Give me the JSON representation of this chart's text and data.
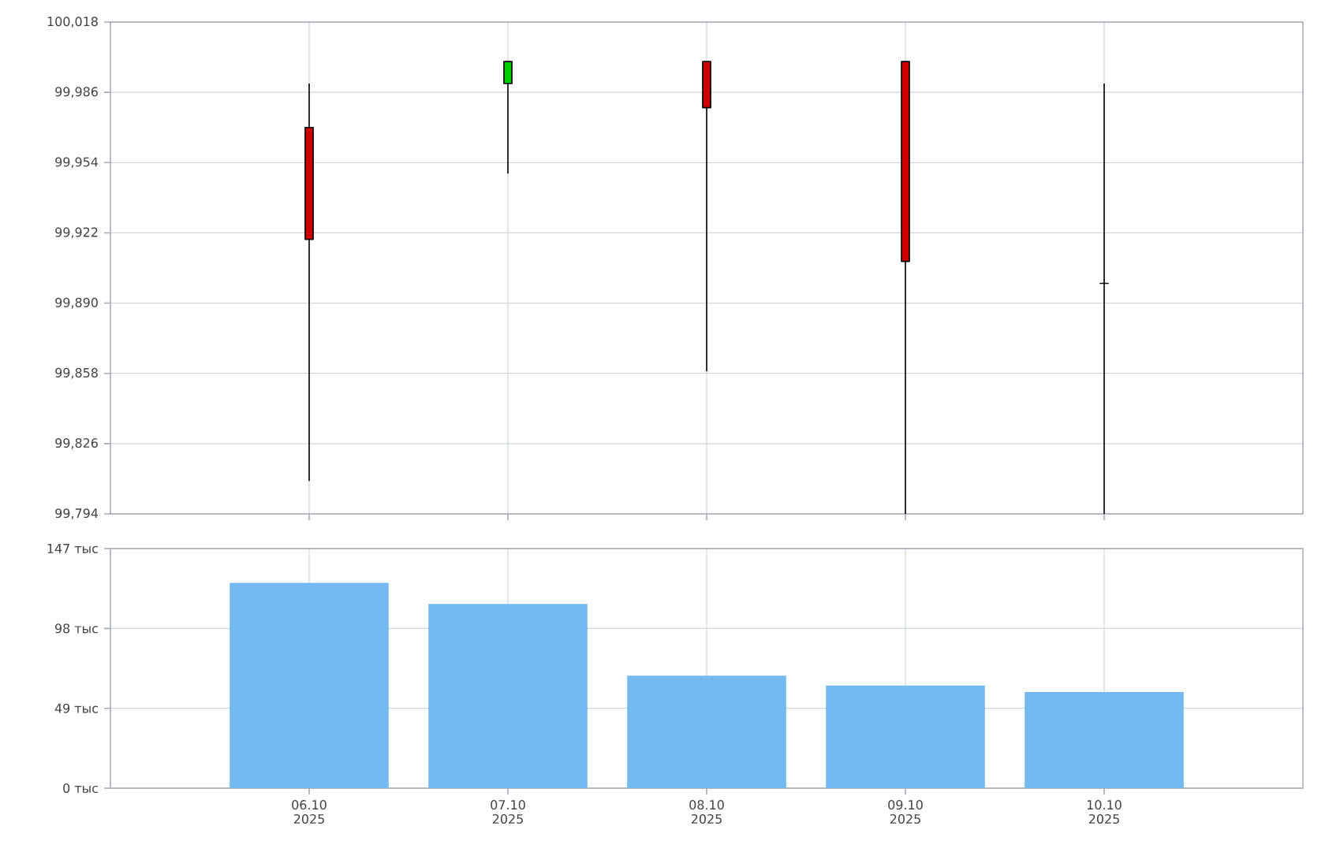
{
  "chart_data": [
    {
      "type": "candlestick",
      "categories": [
        null,
        null,
        null,
        null,
        null
      ],
      "ohlc": [
        [
          99970,
          99990,
          99809,
          99919
        ],
        [
          99990,
          100000,
          99949,
          100000
        ],
        [
          100000,
          100000,
          99859,
          99979
        ],
        [
          100000,
          100000,
          99794,
          99909
        ],
        [
          99899,
          99990,
          99794,
          99899
        ]
      ],
      "colors": [
        "#cc0000",
        "#00cc00",
        "#cc0000",
        "#cc0000",
        "#000000"
      ],
      "ylim": [
        99794,
        100018
      ],
      "yticks": [
        {
          "value": 99794,
          "label": "99,794"
        },
        {
          "value": 99826,
          "label": "99,826"
        },
        {
          "value": 99858,
          "label": "99,858"
        },
        {
          "value": 99890,
          "label": "99,890"
        },
        {
          "value": 99922,
          "label": "99,922"
        },
        {
          "value": 99954,
          "label": "99,954"
        },
        {
          "value": 99986,
          "label": "99,986"
        },
        {
          "value": 100018,
          "label": "100,018"
        }
      ],
      "grid": true,
      "tick_labels": "y"
    },
    {
      "type": "bar",
      "categories": [
        "06.10 2025",
        "07.10 2025",
        "08.10 2025",
        "09.10 2025",
        "10.10 2025"
      ],
      "values": [
        126,
        113,
        69,
        63,
        59
      ],
      "color": "#74b9f0",
      "ylim": [
        0,
        147
      ],
      "yticks": [
        {
          "value": 0,
          "label": "0 тыс"
        },
        {
          "value": 49,
          "label": "49 тыс"
        },
        {
          "value": 98,
          "label": "98 тыс"
        },
        {
          "value": 147,
          "label": "147 тыс"
        }
      ],
      "grid": true
    }
  ]
}
